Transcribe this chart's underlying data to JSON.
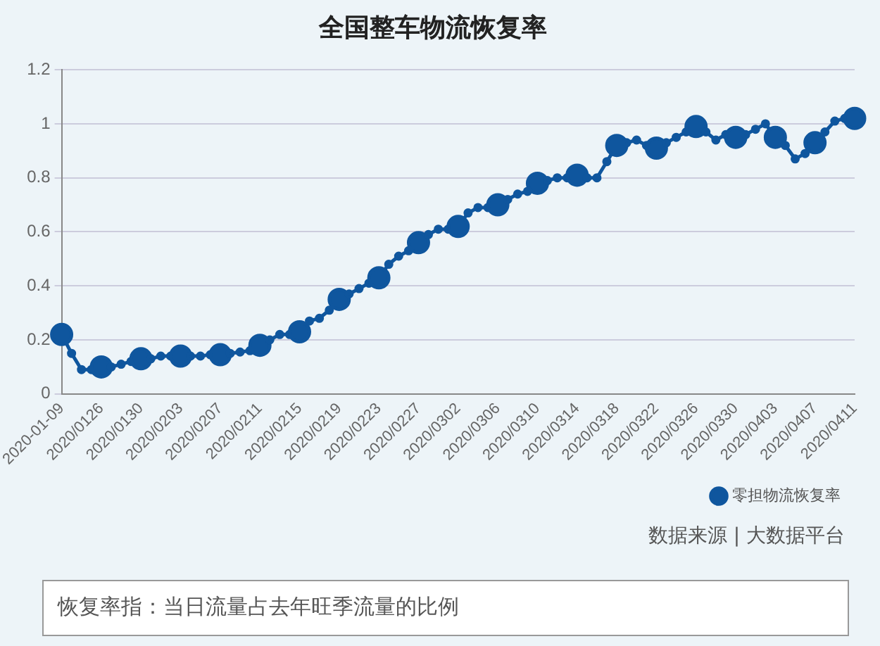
{
  "chart_data": {
    "type": "line",
    "title": "全国整车物流恢复率",
    "categories": [
      "2020-01-09",
      null,
      null,
      null,
      "2020/0126",
      null,
      null,
      null,
      "2020/0130",
      null,
      null,
      null,
      "2020/0203",
      null,
      null,
      null,
      "2020/0207",
      null,
      null,
      null,
      "2020/0211",
      null,
      null,
      null,
      "2020/0215",
      null,
      null,
      null,
      "2020/0219",
      null,
      null,
      null,
      "2020/0223",
      null,
      null,
      null,
      "2020/0227",
      null,
      null,
      null,
      "2020/0302",
      null,
      null,
      null,
      "2020/0306",
      null,
      null,
      null,
      "2020/0310",
      null,
      null,
      null,
      "2020/0314",
      null,
      null,
      null,
      "2020/0318",
      null,
      null,
      null,
      "2020/0322",
      null,
      null,
      null,
      "2020/0326",
      null,
      null,
      null,
      "2020/0330",
      null,
      null,
      null,
      "2020/0403",
      null,
      null,
      null,
      "2020/0407",
      null,
      null,
      null,
      "2020/0411"
    ],
    "series": [
      {
        "name": "零担物流恢复率",
        "color": "#0f569e",
        "values": [
          0.22,
          0.15,
          0.09,
          0.09,
          0.1,
          0.1,
          0.11,
          0.12,
          0.13,
          0.13,
          0.14,
          0.14,
          0.14,
          0.14,
          0.14,
          0.145,
          0.145,
          0.15,
          0.155,
          0.16,
          0.18,
          0.2,
          0.22,
          0.22,
          0.23,
          0.27,
          0.28,
          0.31,
          0.35,
          0.37,
          0.39,
          0.41,
          0.43,
          0.48,
          0.51,
          0.53,
          0.56,
          0.59,
          0.61,
          0.61,
          0.62,
          0.67,
          0.69,
          0.69,
          0.7,
          0.72,
          0.74,
          0.75,
          0.78,
          0.79,
          0.8,
          0.8,
          0.81,
          0.8,
          0.8,
          0.86,
          0.92,
          0.93,
          0.94,
          0.92,
          0.91,
          0.93,
          0.95,
          0.97,
          0.99,
          0.97,
          0.94,
          0.96,
          0.95,
          0.96,
          0.98,
          1.0,
          0.95,
          0.92,
          0.87,
          0.89,
          0.93,
          0.97,
          1.01,
          1.02,
          1.02
        ]
      }
    ],
    "ylim": [
      0,
      1.2
    ],
    "yticks": [
      0,
      0.2,
      0.4,
      0.6,
      0.8,
      1,
      1.2
    ],
    "grid": "y",
    "legend": "bottom right",
    "marker": "circle",
    "line_style": "solid",
    "annotations": [
      "数据来源 | 大数据平台",
      "恢复率指：当日流量占去年旺季流量的比例"
    ]
  }
}
